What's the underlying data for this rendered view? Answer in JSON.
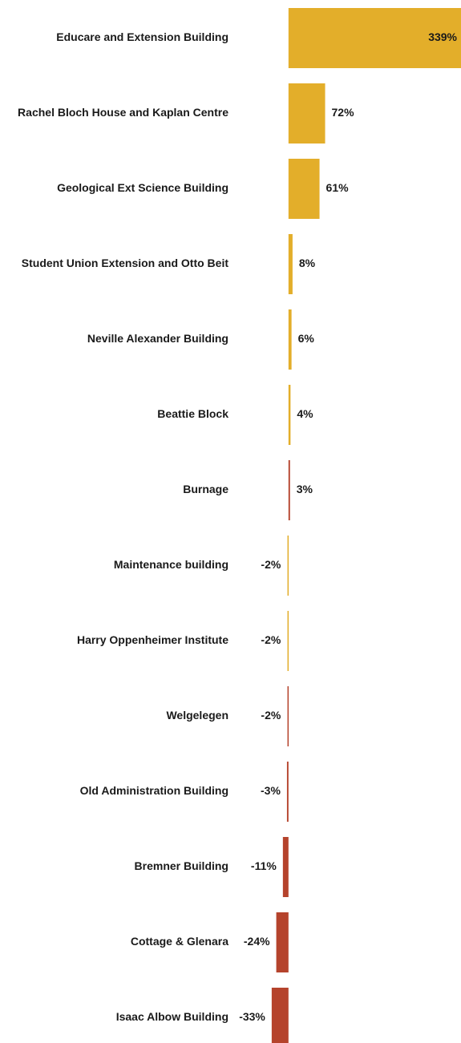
{
  "chart_data": {
    "type": "hbar",
    "categories": [
      "Educare and Extension Building",
      "Rachel Bloch House and Kaplan Centre",
      "Geological Ext Science Building",
      "Student Union Extension and Otto Beit",
      "Neville Alexander Building",
      "Beattie Block",
      "Burnage",
      "Maintenance building",
      "Harry Oppenheimer Institute",
      "Welgelegen",
      "Old Administration Building",
      "Bremner Building",
      "Cottage & Glenara",
      "Isaac Albow Building"
    ],
    "values": [
      339,
      72,
      61,
      8,
      6,
      4,
      3,
      -2,
      -2,
      -2,
      -3,
      -11,
      -24,
      -33
    ],
    "value_labels": [
      "339%",
      "72%",
      "61%",
      "8%",
      "6%",
      "4%",
      "3%",
      "-2%",
      "-2%",
      "-2%",
      "-3%",
      "-11%",
      "-24%",
      "-33%"
    ],
    "colors": [
      "#e3ae2a",
      "#e3ae2a",
      "#e3ae2a",
      "#e3ae2a",
      "#e3ae2a",
      "#e3ae2a",
      "#b5432c",
      "#e3ae2a",
      "#e3ae2a",
      "#b5432c",
      "#b5432c",
      "#b5432c",
      "#b5432c",
      "#b5432c"
    ],
    "xlim": [
      -110,
      339
    ]
  }
}
